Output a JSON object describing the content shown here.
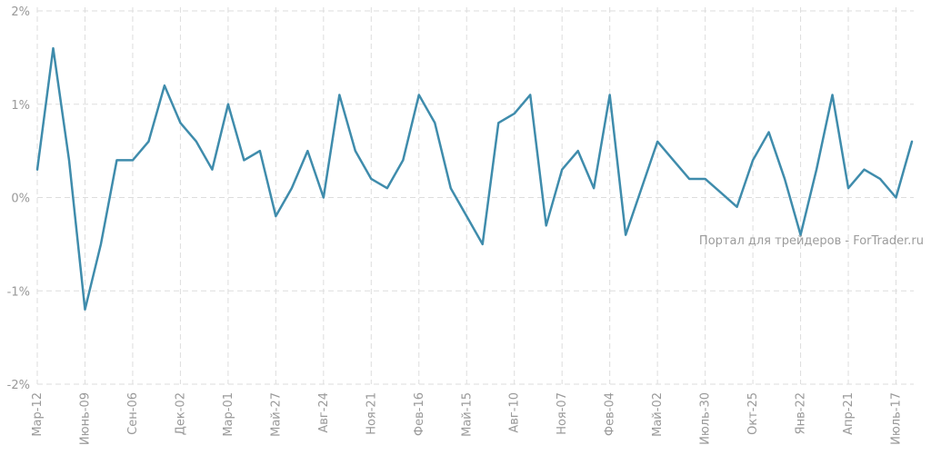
{
  "chart_data": {
    "type": "line",
    "title": "",
    "xlabel": "",
    "ylabel": "",
    "ylim": [
      -2,
      2
    ],
    "yticks": [
      {
        "value": 2,
        "label": "2%"
      },
      {
        "value": 1,
        "label": "1%"
      },
      {
        "value": 0,
        "label": "0%"
      },
      {
        "value": -1,
        "label": "-1%"
      },
      {
        "value": -2,
        "label": "-2%"
      }
    ],
    "x_tick_labels": [
      "Мар-12",
      "Июнь-09",
      "Сен-06",
      "Дек-02",
      "Мар-01",
      "Май-27",
      "Авг-24",
      "Ноя-21",
      "Фев-16",
      "Май-15",
      "Авг-10",
      "Ноя-07",
      "Фев-04",
      "Май-02",
      "Июль-30",
      "Окт-25",
      "Янв-22",
      "Апр-21",
      "Июль-17"
    ],
    "grid": true,
    "legend": "none",
    "watermark": "Портал для трейдеров - ForTrader.ru",
    "series": [
      {
        "values": [
          0.3,
          1.6,
          0.4,
          -1.2,
          -0.5,
          0.4,
          0.4,
          0.6,
          1.2,
          0.8,
          0.6,
          0.3,
          1.0,
          0.4,
          0.5,
          -0.2,
          0.1,
          0.5,
          0.0,
          1.1,
          0.5,
          0.2,
          0.1,
          0.4,
          1.1,
          0.8,
          0.1,
          -0.2,
          -0.5,
          0.8,
          0.9,
          1.1,
          -0.3,
          0.3,
          0.5,
          0.1,
          1.1,
          -0.4,
          0.1,
          0.6,
          0.4,
          0.2,
          0.2,
          0.05,
          -0.1,
          0.4,
          0.7,
          0.2,
          -0.4,
          0.3,
          1.1,
          0.1,
          0.3,
          0.2,
          0.0,
          0.6
        ],
        "color": "#3f8cac"
      }
    ]
  }
}
